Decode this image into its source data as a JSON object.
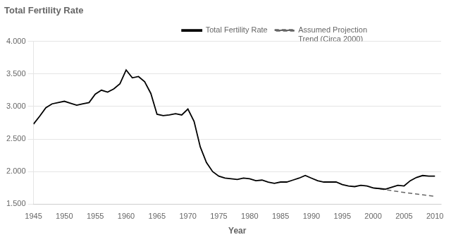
{
  "chart_data": {
    "type": "line",
    "title": "Total Fertility Rate",
    "xlabel": "Year",
    "xlim": [
      1945,
      2011
    ],
    "xticks": [
      1945,
      1950,
      1955,
      1960,
      1965,
      1970,
      1975,
      1980,
      1985,
      1990,
      1995,
      2000,
      2005,
      2010
    ],
    "ylim": [
      1.5,
      4.0
    ],
    "yticks": [
      {
        "value": 1.5,
        "label": "1.500"
      },
      {
        "value": 2.0,
        "label": "2.000"
      },
      {
        "value": 2.5,
        "label": "2.500"
      },
      {
        "value": 3.0,
        "label": "3.000"
      },
      {
        "value": 3.5,
        "label": "3.500"
      },
      {
        "value": 4.0,
        "label": "4.000"
      }
    ],
    "grid": "y",
    "legend": "upper right",
    "series": [
      {
        "name": "Total Fertility Rate",
        "color": "#000000",
        "line_style": "solid",
        "x": [
          1945,
          1946,
          1947,
          1948,
          1949,
          1950,
          1951,
          1952,
          1953,
          1954,
          1955,
          1956,
          1957,
          1958,
          1959,
          1960,
          1961,
          1962,
          1963,
          1964,
          1965,
          1966,
          1967,
          1968,
          1969,
          1970,
          1971,
          1972,
          1973,
          1974,
          1975,
          1976,
          1977,
          1978,
          1979,
          1980,
          1981,
          1982,
          1983,
          1984,
          1985,
          1986,
          1987,
          1988,
          1989,
          1990,
          1991,
          1992,
          1993,
          1994,
          1995,
          1996,
          1997,
          1998,
          1999,
          2000,
          2001,
          2002,
          2003,
          2004,
          2005,
          2006,
          2007,
          2008,
          2009,
          2010
        ],
        "values": [
          2.73,
          2.85,
          2.98,
          3.04,
          3.06,
          3.08,
          3.05,
          3.02,
          3.04,
          3.06,
          3.19,
          3.25,
          3.22,
          3.27,
          3.35,
          3.56,
          3.44,
          3.46,
          3.38,
          3.2,
          2.88,
          2.86,
          2.87,
          2.89,
          2.87,
          2.96,
          2.77,
          2.38,
          2.14,
          2.0,
          1.93,
          1.9,
          1.89,
          1.88,
          1.9,
          1.89,
          1.86,
          1.87,
          1.84,
          1.82,
          1.84,
          1.84,
          1.87,
          1.9,
          1.94,
          1.9,
          1.86,
          1.84,
          1.84,
          1.84,
          1.8,
          1.78,
          1.77,
          1.79,
          1.78,
          1.75,
          1.74,
          1.73,
          1.76,
          1.79,
          1.78,
          1.86,
          1.91,
          1.94,
          1.93,
          1.93
        ]
      },
      {
        "name": "Assumed Projection\nTrend (Circa 2000)",
        "color": "#666666",
        "line_style": "dashed",
        "x": [
          2000,
          2005,
          2010
        ],
        "values": [
          1.75,
          1.68,
          1.62
        ]
      }
    ]
  }
}
